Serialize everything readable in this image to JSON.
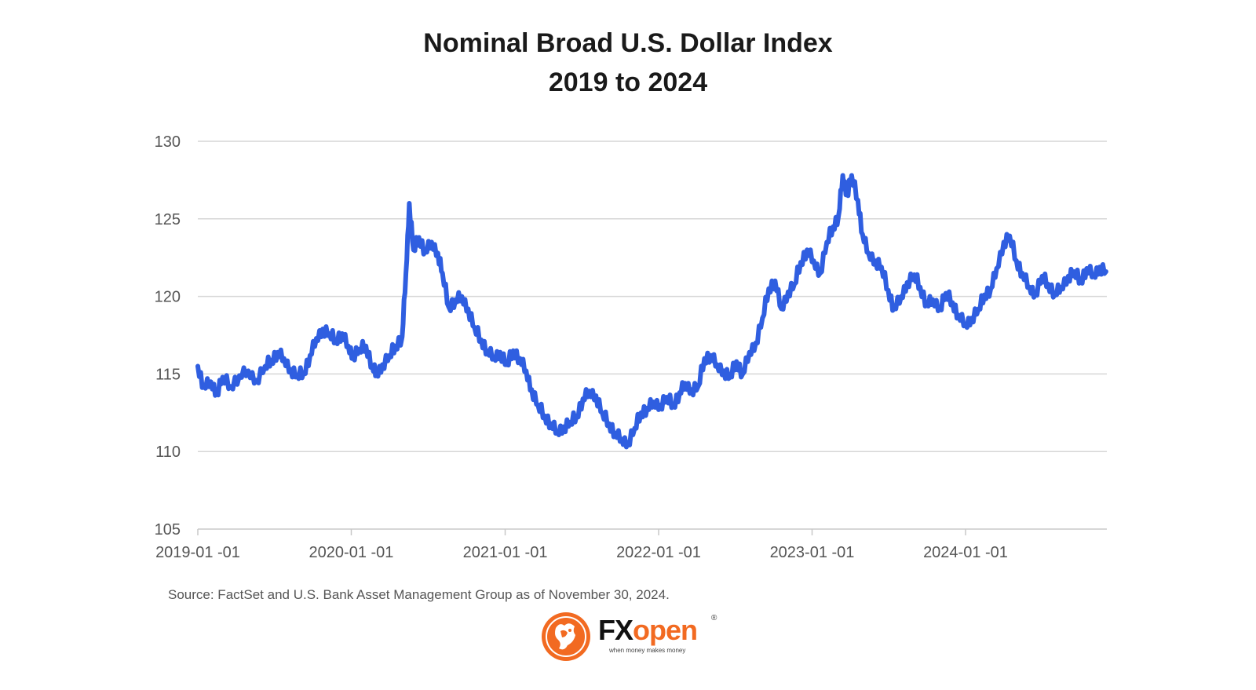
{
  "chart_data": {
    "type": "line",
    "title": "Nominal Broad U.S. Dollar Index",
    "subtitle": "2019 to 2024",
    "xlabel": "",
    "ylabel": "",
    "ylim": [
      105,
      130
    ],
    "xlim": [
      "2019-01-01",
      "2024-11-30"
    ],
    "grid": true,
    "yticks": [
      105,
      110,
      115,
      120,
      125,
      130
    ],
    "xticks": [
      "2019-01-01",
      "2020-01-01",
      "2021-01-01",
      "2022-01-01",
      "2023-01-01",
      "2024-01-01"
    ],
    "series": [
      {
        "name": "Nominal Broad U.S. Dollar Index",
        "color": "#2f5ee0",
        "points": [
          [
            "2019-01-01",
            115.5
          ],
          [
            "2019-01-15",
            114.2
          ],
          [
            "2019-02-01",
            114.5
          ],
          [
            "2019-02-15",
            113.8
          ],
          [
            "2019-03-01",
            114.8
          ],
          [
            "2019-03-20",
            114.2
          ],
          [
            "2019-04-10",
            114.9
          ],
          [
            "2019-05-01",
            115.2
          ],
          [
            "2019-05-20",
            114.6
          ],
          [
            "2019-06-10",
            115.5
          ],
          [
            "2019-06-25",
            115.9
          ],
          [
            "2019-07-10",
            116.4
          ],
          [
            "2019-07-25",
            116.0
          ],
          [
            "2019-08-10",
            115.3
          ],
          [
            "2019-08-25",
            114.9
          ],
          [
            "2019-09-10",
            115.1
          ],
          [
            "2019-09-25",
            116.2
          ],
          [
            "2019-10-10",
            117.3
          ],
          [
            "2019-10-25",
            117.9
          ],
          [
            "2019-11-10",
            117.6
          ],
          [
            "2019-11-25",
            117.2
          ],
          [
            "2019-12-10",
            117.6
          ],
          [
            "2019-12-25",
            116.8
          ],
          [
            "2020-01-05",
            116.2
          ],
          [
            "2020-01-20",
            116.6
          ],
          [
            "2020-02-05",
            116.8
          ],
          [
            "2020-02-20",
            115.5
          ],
          [
            "2020-03-01",
            115.0
          ],
          [
            "2020-03-15",
            115.6
          ],
          [
            "2020-04-01",
            116.2
          ],
          [
            "2020-04-15",
            116.8
          ],
          [
            "2020-05-01",
            117.4
          ],
          [
            "2020-05-10",
            121.5
          ],
          [
            "2020-05-18",
            126.0
          ],
          [
            "2020-05-28",
            123.0
          ],
          [
            "2020-06-10",
            123.8
          ],
          [
            "2020-06-25",
            122.9
          ],
          [
            "2020-07-10",
            123.5
          ],
          [
            "2020-07-25",
            122.8
          ],
          [
            "2020-08-05",
            121.5
          ],
          [
            "2020-08-20",
            119.3
          ],
          [
            "2020-09-05",
            119.8
          ],
          [
            "2020-09-20",
            120.0
          ],
          [
            "2020-10-05",
            119.2
          ],
          [
            "2020-10-20",
            118.0
          ],
          [
            "2020-11-05",
            117.2
          ],
          [
            "2020-11-20",
            116.5
          ],
          [
            "2020-12-05",
            116.1
          ],
          [
            "2020-12-20",
            116.4
          ],
          [
            "2021-01-05",
            115.6
          ],
          [
            "2021-01-20",
            116.5
          ],
          [
            "2021-02-05",
            116.0
          ],
          [
            "2021-02-20",
            115.2
          ],
          [
            "2021-03-05",
            114.0
          ],
          [
            "2021-03-20",
            113.0
          ],
          [
            "2021-04-05",
            112.3
          ],
          [
            "2021-04-20",
            111.8
          ],
          [
            "2021-05-05",
            111.3
          ],
          [
            "2021-05-20",
            111.6
          ],
          [
            "2021-06-05",
            111.9
          ],
          [
            "2021-06-20",
            112.3
          ],
          [
            "2021-07-05",
            113.4
          ],
          [
            "2021-07-20",
            113.9
          ],
          [
            "2021-08-05",
            113.6
          ],
          [
            "2021-08-20",
            112.5
          ],
          [
            "2021-09-05",
            111.8
          ],
          [
            "2021-09-20",
            111.2
          ],
          [
            "2021-10-05",
            110.8
          ],
          [
            "2021-10-20",
            110.6
          ],
          [
            "2021-11-05",
            111.5
          ],
          [
            "2021-11-20",
            112.5
          ],
          [
            "2021-12-05",
            112.8
          ],
          [
            "2021-12-20",
            113.2
          ],
          [
            "2022-01-05",
            113.0
          ],
          [
            "2022-01-20",
            113.5
          ],
          [
            "2022-02-05",
            113.0
          ],
          [
            "2022-02-20",
            113.8
          ],
          [
            "2022-03-05",
            114.4
          ],
          [
            "2022-03-20",
            114.0
          ],
          [
            "2022-04-05",
            114.2
          ],
          [
            "2022-04-20",
            116.0
          ],
          [
            "2022-05-05",
            116.2
          ],
          [
            "2022-05-20",
            115.6
          ],
          [
            "2022-06-05",
            115.2
          ],
          [
            "2022-06-20",
            114.8
          ],
          [
            "2022-07-05",
            115.8
          ],
          [
            "2022-07-20",
            115.0
          ],
          [
            "2022-08-05",
            116.4
          ],
          [
            "2022-08-20",
            117.0
          ],
          [
            "2022-09-05",
            118.6
          ],
          [
            "2022-09-20",
            120.5
          ],
          [
            "2022-10-05",
            121.0
          ],
          [
            "2022-10-20",
            119.2
          ],
          [
            "2022-11-05",
            120.3
          ],
          [
            "2022-11-20",
            120.8
          ],
          [
            "2022-12-05",
            122.2
          ],
          [
            "2022-12-20",
            123.0
          ],
          [
            "2023-01-05",
            122.3
          ],
          [
            "2023-01-20",
            121.5
          ],
          [
            "2023-02-05",
            123.5
          ],
          [
            "2023-02-20",
            124.5
          ],
          [
            "2023-03-05",
            125.2
          ],
          [
            "2023-03-15",
            127.8
          ],
          [
            "2023-03-25",
            126.6
          ],
          [
            "2023-04-05",
            127.8
          ],
          [
            "2023-04-20",
            126.2
          ],
          [
            "2023-05-01",
            124.0
          ],
          [
            "2023-05-15",
            122.8
          ],
          [
            "2023-06-01",
            122.3
          ],
          [
            "2023-06-15",
            121.9
          ],
          [
            "2023-07-01",
            120.4
          ],
          [
            "2023-07-15",
            119.2
          ],
          [
            "2023-08-01",
            120.0
          ],
          [
            "2023-08-15",
            120.9
          ],
          [
            "2023-09-01",
            121.4
          ],
          [
            "2023-09-15",
            120.6
          ],
          [
            "2023-10-01",
            119.5
          ],
          [
            "2023-10-15",
            119.8
          ],
          [
            "2023-11-01",
            119.3
          ],
          [
            "2023-11-15",
            120.2
          ],
          [
            "2023-12-01",
            119.6
          ],
          [
            "2023-12-15",
            118.8
          ],
          [
            "2024-01-01",
            118.2
          ],
          [
            "2024-01-15",
            118.6
          ],
          [
            "2024-02-01",
            119.2
          ],
          [
            "2024-02-15",
            120.1
          ],
          [
            "2024-03-01",
            120.5
          ],
          [
            "2024-03-15",
            121.8
          ],
          [
            "2024-04-01",
            123.5
          ],
          [
            "2024-04-15",
            123.9
          ],
          [
            "2024-05-01",
            122.3
          ],
          [
            "2024-05-15",
            121.5
          ],
          [
            "2024-06-01",
            120.6
          ],
          [
            "2024-06-15",
            120.2
          ],
          [
            "2024-07-01",
            121.3
          ],
          [
            "2024-07-15",
            120.8
          ],
          [
            "2024-08-01",
            120.2
          ],
          [
            "2024-08-15",
            120.6
          ],
          [
            "2024-09-01",
            121.3
          ],
          [
            "2024-09-15",
            121.6
          ],
          [
            "2024-10-01",
            121.0
          ],
          [
            "2024-10-15",
            121.8
          ],
          [
            "2024-11-01",
            121.4
          ],
          [
            "2024-11-15",
            121.9
          ],
          [
            "2024-11-30",
            121.6
          ]
        ]
      }
    ]
  },
  "source": "Source: FactSet and U.S. Bank Asset Management Group as of November 30, 2024.",
  "logo": {
    "fx": "FX",
    "open": "open",
    "tagline": "when money makes money",
    "registered": "®",
    "icon": "fxopen-bull-icon",
    "accent_color": "#f26a21"
  }
}
